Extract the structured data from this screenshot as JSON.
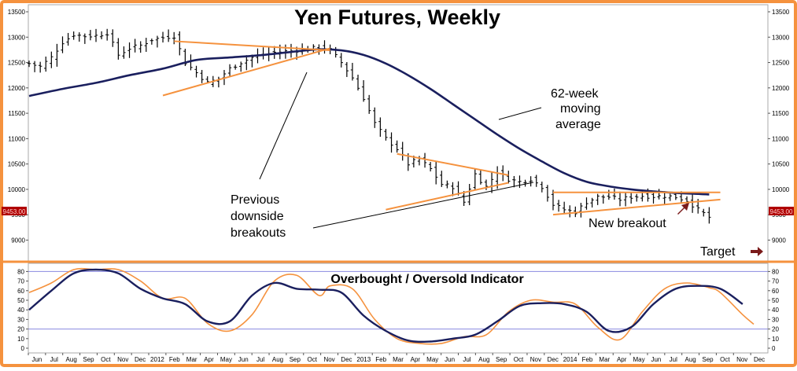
{
  "colors": {
    "frame": "#f5923e",
    "price_bar": "#000000",
    "moving_average": "#1a1f5e",
    "trendline": "#f5923e",
    "fast_line": "#f5923e",
    "slow_line": "#1a1f5e",
    "threshold_line": "#8a8ae0",
    "arrow": "#7a1a1a",
    "price_tag_bg": "#b00000",
    "price_tag_text": "#ffd0d0"
  },
  "chart_data": [
    {
      "type": "bar",
      "title": "Yen Futures, Weekly",
      "ylim": [
        8500,
        13500
      ],
      "y_ticks": [
        9000,
        9500,
        10000,
        10500,
        11000,
        11500,
        12000,
        12500,
        13000,
        13500
      ],
      "y_tick_labels": [
        "9000",
        "9500",
        "10000",
        "10500",
        "11000",
        "11500",
        "12000",
        "12500",
        "13000",
        "13500"
      ],
      "x_labels": [
        "Jun",
        "Jul",
        "Aug",
        "Sep",
        "Oct",
        "Nov",
        "Dec",
        "2012",
        "Feb",
        "Mar",
        "Apr",
        "May",
        "Jun",
        "Jul",
        "Aug",
        "Sep",
        "Oct",
        "Nov",
        "Dec",
        "2013",
        "Feb",
        "Mar",
        "Apr",
        "May",
        "Jun",
        "Jul",
        "Aug",
        "Sep",
        "Oct",
        "Nov",
        "Dec",
        "2014",
        "Feb",
        "Mar",
        "Apr",
        "May",
        "Jun",
        "Jul",
        "Aug",
        "Sep",
        "Oct",
        "Nov",
        "Dec"
      ],
      "price_tag": "9453.00",
      "price_close_path": [
        [
          0,
          12480
        ],
        [
          1,
          12420
        ],
        [
          2,
          12600
        ],
        [
          3,
          12900
        ],
        [
          4,
          13050
        ],
        [
          5,
          13020
        ],
        [
          6,
          13030
        ],
        [
          7,
          13080
        ],
        [
          8,
          12650
        ],
        [
          9,
          12780
        ],
        [
          10,
          12840
        ],
        [
          11,
          12950
        ],
        [
          12,
          12990
        ],
        [
          13,
          13020
        ],
        [
          14,
          12500
        ],
        [
          15,
          12300
        ],
        [
          16,
          12100
        ],
        [
          17,
          12180
        ],
        [
          18,
          12380
        ],
        [
          19,
          12500
        ],
        [
          20,
          12600
        ],
        [
          21,
          12650
        ],
        [
          22,
          12700
        ],
        [
          23,
          12720
        ],
        [
          24,
          12740
        ],
        [
          25,
          12760
        ],
        [
          26,
          12800
        ],
        [
          27,
          12750
        ],
        [
          28,
          12500
        ],
        [
          29,
          12200
        ],
        [
          30,
          11800
        ],
        [
          31,
          11300
        ],
        [
          32,
          11000
        ],
        [
          33,
          10800
        ],
        [
          34,
          10500
        ],
        [
          35,
          10600
        ],
        [
          36,
          10400
        ],
        [
          37,
          10100
        ],
        [
          38,
          10050
        ],
        [
          39,
          9750
        ],
        [
          40,
          10300
        ],
        [
          41,
          10050
        ],
        [
          42,
          10350
        ],
        [
          43,
          10200
        ],
        [
          44,
          10150
        ],
        [
          45,
          10200
        ],
        [
          46,
          10050
        ],
        [
          47,
          9700
        ],
        [
          48,
          9600
        ],
        [
          49,
          9550
        ],
        [
          50,
          9750
        ],
        [
          51,
          9850
        ],
        [
          52,
          9850
        ],
        [
          53,
          9800
        ],
        [
          54,
          9850
        ],
        [
          55,
          9870
        ],
        [
          56,
          9860
        ],
        [
          57,
          9870
        ],
        [
          58,
          9850
        ],
        [
          59,
          9780
        ],
        [
          60,
          9600
        ],
        [
          61,
          9450
        ]
      ],
      "moving_average_path": [
        [
          0,
          11840
        ],
        [
          3,
          11980
        ],
        [
          6,
          12100
        ],
        [
          9,
          12250
        ],
        [
          12,
          12380
        ],
        [
          15,
          12550
        ],
        [
          18,
          12600
        ],
        [
          21,
          12650
        ],
        [
          24,
          12720
        ],
        [
          26,
          12760
        ],
        [
          28,
          12740
        ],
        [
          30,
          12650
        ],
        [
          32,
          12480
        ],
        [
          34,
          12250
        ],
        [
          36,
          11980
        ],
        [
          38,
          11680
        ],
        [
          40,
          11380
        ],
        [
          42,
          11080
        ],
        [
          44,
          10800
        ],
        [
          46,
          10550
        ],
        [
          48,
          10320
        ],
        [
          50,
          10150
        ],
        [
          52,
          10060
        ],
        [
          54,
          10000
        ],
        [
          56,
          9960
        ],
        [
          58,
          9930
        ],
        [
          60,
          9910
        ],
        [
          61,
          9900
        ]
      ],
      "trendlines": [
        {
          "from": [
            13,
            12920
          ],
          "to": [
            27,
            12740
          ]
        },
        {
          "from": [
            12,
            11850
          ],
          "to": [
            27,
            12780
          ]
        },
        {
          "from": [
            33,
            10700
          ],
          "to": [
            43,
            10280
          ]
        },
        {
          "from": [
            32,
            9600
          ],
          "to": [
            43,
            10130
          ]
        },
        {
          "from": [
            47,
            9940
          ],
          "to": [
            62,
            9940
          ]
        },
        {
          "from": [
            47,
            9500
          ],
          "to": [
            62,
            9800
          ]
        }
      ],
      "annotations": {
        "moving_average_label": [
          "62-week",
          "moving",
          "average"
        ],
        "previous_breakouts_label": [
          "Previous",
          "downside",
          "breakouts"
        ],
        "new_breakout_label": "New breakout",
        "target_label": "Target"
      }
    },
    {
      "type": "line",
      "title": "Overbought / Oversold Indicator",
      "ylim": [
        0,
        90
      ],
      "y_ticks": [
        0,
        10,
        20,
        30,
        40,
        50,
        60,
        70,
        80
      ],
      "y_tick_labels": [
        "0",
        "10",
        "20",
        "30",
        "40",
        "50",
        "60",
        "70",
        "80"
      ],
      "thresholds": [
        20,
        80
      ],
      "series": [
        {
          "color_key": "fast_line",
          "points": [
            [
              0,
              58
            ],
            [
              2,
              68
            ],
            [
              4,
              82
            ],
            [
              6,
              82
            ],
            [
              8,
              82
            ],
            [
              10,
              70
            ],
            [
              12,
              52
            ],
            [
              14,
              52
            ],
            [
              16,
              26
            ],
            [
              18,
              18
            ],
            [
              20,
              35
            ],
            [
              22,
              70
            ],
            [
              24,
              76
            ],
            [
              26,
              55
            ],
            [
              27,
              65
            ],
            [
              29,
              62
            ],
            [
              31,
              30
            ],
            [
              33,
              10
            ],
            [
              35,
              5
            ],
            [
              37,
              5
            ],
            [
              39,
              12
            ],
            [
              41,
              14
            ],
            [
              43,
              38
            ],
            [
              45,
              50
            ],
            [
              47,
              48
            ],
            [
              49,
              46
            ],
            [
              51,
              22
            ],
            [
              53,
              9
            ],
            [
              55,
              38
            ],
            [
              57,
              62
            ],
            [
              59,
              68
            ],
            [
              61,
              63
            ],
            [
              62,
              58
            ],
            [
              64,
              35
            ],
            [
              65,
              25
            ]
          ]
        },
        {
          "color_key": "slow_line",
          "points": [
            [
              0,
              40
            ],
            [
              2,
              60
            ],
            [
              4,
              78
            ],
            [
              6,
              82
            ],
            [
              8,
              78
            ],
            [
              10,
              62
            ],
            [
              12,
              52
            ],
            [
              14,
              46
            ],
            [
              16,
              28
            ],
            [
              18,
              28
            ],
            [
              20,
              55
            ],
            [
              22,
              68
            ],
            [
              24,
              62
            ],
            [
              26,
              61
            ],
            [
              28,
              58
            ],
            [
              30,
              34
            ],
            [
              32,
              18
            ],
            [
              34,
              8
            ],
            [
              36,
              7
            ],
            [
              38,
              10
            ],
            [
              40,
              14
            ],
            [
              42,
              28
            ],
            [
              44,
              44
            ],
            [
              46,
              47
            ],
            [
              48,
              46
            ],
            [
              50,
              38
            ],
            [
              52,
              18
            ],
            [
              54,
              22
            ],
            [
              56,
              46
            ],
            [
              58,
              62
            ],
            [
              60,
              65
            ],
            [
              62,
              62
            ],
            [
              64,
              46
            ]
          ]
        }
      ]
    }
  ]
}
